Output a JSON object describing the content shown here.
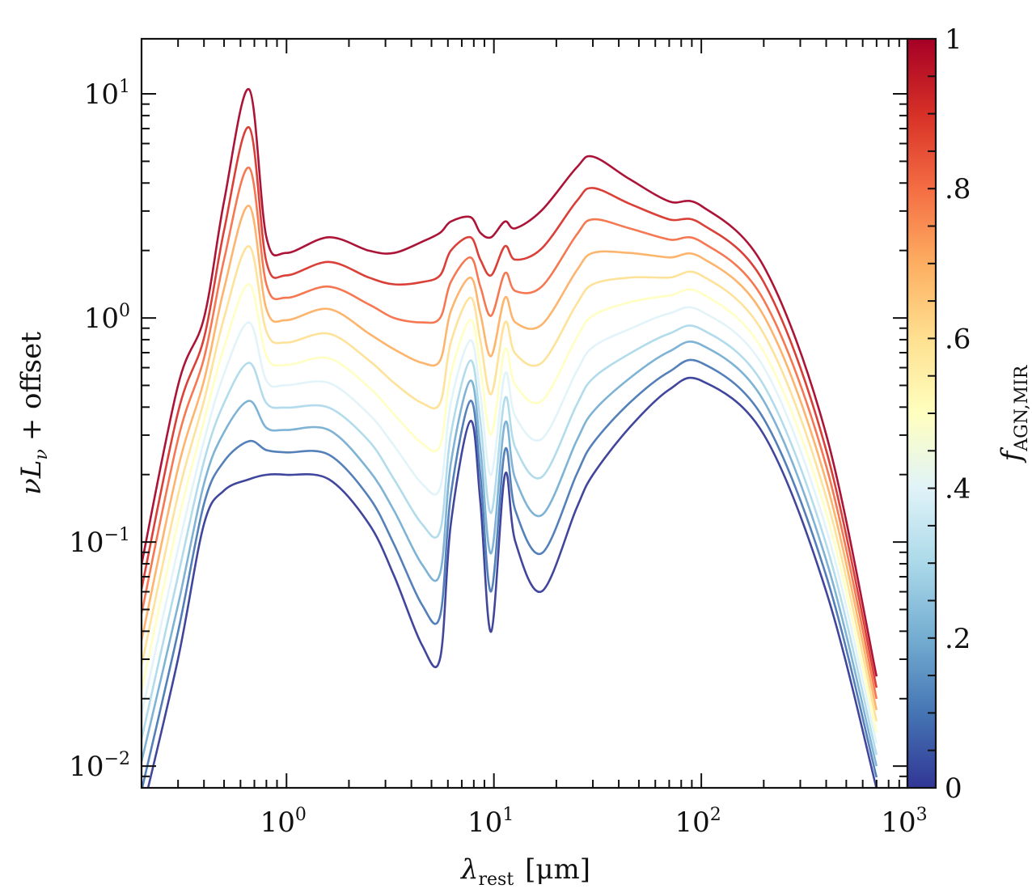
{
  "chart_data": {
    "type": "line",
    "title": "",
    "xlabel": "λ_rest [μm]",
    "xlabel_main": "λ",
    "xlabel_sub": "rest",
    "xlabel_unit": "[μm]",
    "ylabel": "νL_ν + offset",
    "ylabel_main": "νL",
    "ylabel_sub": "ν",
    "ylabel_rest": "+ offset",
    "xscale": "log",
    "yscale": "log",
    "xlim": [
      0.2,
      986
    ],
    "ylim": [
      0.008,
      17.6
    ],
    "grid": false,
    "x_ticks": [
      {
        "value": 1,
        "base": "10",
        "exp": "0"
      },
      {
        "value": 10,
        "base": "10",
        "exp": "1"
      },
      {
        "value": 100,
        "base": "10",
        "exp": "2"
      },
      {
        "value": 1000,
        "base": "10",
        "exp": "3"
      }
    ],
    "y_ticks": [
      {
        "value": 0.01,
        "base": "10",
        "exp": "−2"
      },
      {
        "value": 0.1,
        "base": "10",
        "exp": "−1"
      },
      {
        "value": 1,
        "base": "10",
        "exp": "0"
      },
      {
        "value": 10,
        "base": "10",
        "exp": "1"
      }
    ],
    "colorbar": {
      "label_main": "f",
      "label_sub": "AGN,MIR",
      "label": "f_AGN,MIR",
      "colormap": "RdYlBu_r",
      "range": [
        0,
        1
      ],
      "ticks": [
        {
          "value": 0,
          "label": "0"
        },
        {
          "value": 0.2,
          "label": ".2"
        },
        {
          "value": 0.4,
          "label": ".4"
        },
        {
          "value": 0.6,
          "label": ".6"
        },
        {
          "value": 0.8,
          "label": ".8"
        },
        {
          "value": 1,
          "label": "1"
        }
      ],
      "colors": [
        "#313695",
        "#4575b4",
        "#74add1",
        "#abd9e9",
        "#e0f3f8",
        "#ffffbf",
        "#fee090",
        "#fdae61",
        "#f46d43",
        "#d73027",
        "#a50026"
      ]
    },
    "x": [
      0.2,
      0.3,
      0.4,
      0.5,
      0.66,
      0.8,
      1.0,
      1.6,
      2.5,
      3.3,
      4.5,
      5.5,
      6.2,
      7.7,
      8.6,
      9.7,
      11.3,
      12.7,
      17,
      25,
      30,
      45,
      70,
      100,
      200,
      400,
      700
    ],
    "value_encoding": "log10",
    "series": [
      {
        "name": "f_AGN=0.0",
        "f": 0.0,
        "log10_values": [
          -2.22,
          -1.52,
          -0.92,
          -0.77,
          -0.72,
          -0.7,
          -0.7,
          -0.72,
          -0.92,
          -1.15,
          -1.46,
          -1.52,
          -0.92,
          -0.46,
          -0.82,
          -1.4,
          -0.7,
          -1.0,
          -1.22,
          -0.85,
          -0.7,
          -0.49,
          -0.32,
          -0.28,
          -0.52,
          -1.22,
          -2.1
        ]
      },
      {
        "name": "f_AGN=0.1",
        "f": 0.1,
        "log10_values": [
          -2.11,
          -1.4,
          -0.83,
          -0.64,
          -0.55,
          -0.59,
          -0.6,
          -0.61,
          -0.8,
          -1.01,
          -1.28,
          -1.33,
          -0.79,
          -0.37,
          -0.7,
          -1.22,
          -0.59,
          -0.86,
          -1.05,
          -0.7,
          -0.56,
          -0.38,
          -0.24,
          -0.2,
          -0.45,
          -1.15,
          -2.05
        ]
      },
      {
        "name": "f_AGN=0.2",
        "f": 0.2,
        "log10_values": [
          -1.98,
          -1.28,
          -0.74,
          -0.51,
          -0.37,
          -0.49,
          -0.5,
          -0.5,
          -0.68,
          -0.86,
          -1.1,
          -1.14,
          -0.65,
          -0.28,
          -0.58,
          -1.05,
          -0.47,
          -0.72,
          -0.88,
          -0.55,
          -0.42,
          -0.27,
          -0.15,
          -0.12,
          -0.37,
          -1.08,
          -2.0
        ]
      },
      {
        "name": "f_AGN=0.3",
        "f": 0.3,
        "log10_values": [
          -1.88,
          -1.15,
          -0.64,
          -0.38,
          -0.2,
          -0.38,
          -0.4,
          -0.4,
          -0.55,
          -0.72,
          -0.92,
          -0.95,
          -0.52,
          -0.19,
          -0.46,
          -0.87,
          -0.36,
          -0.58,
          -0.71,
          -0.39,
          -0.27,
          -0.16,
          -0.07,
          -0.05,
          -0.3,
          -1.01,
          -1.95
        ]
      },
      {
        "name": "f_AGN=0.4",
        "f": 0.4,
        "log10_values": [
          -1.77,
          -1.03,
          -0.55,
          -0.25,
          -0.02,
          -0.28,
          -0.3,
          -0.29,
          -0.43,
          -0.57,
          -0.74,
          -0.76,
          -0.38,
          -0.1,
          -0.34,
          -0.7,
          -0.25,
          -0.44,
          -0.54,
          -0.24,
          -0.13,
          -0.05,
          0.02,
          0.03,
          -0.22,
          -0.94,
          -1.9
        ]
      },
      {
        "name": "f_AGN=0.5",
        "f": 0.5,
        "log10_values": [
          -1.66,
          -0.91,
          -0.46,
          -0.13,
          0.15,
          -0.17,
          -0.21,
          -0.18,
          -0.31,
          -0.43,
          -0.56,
          -0.57,
          -0.25,
          -0.01,
          -0.22,
          -0.52,
          -0.14,
          -0.3,
          -0.37,
          -0.09,
          0.01,
          0.07,
          0.1,
          0.11,
          -0.15,
          -0.87,
          -1.85
        ]
      },
      {
        "name": "f_AGN=0.6",
        "f": 0.6,
        "log10_values": [
          -1.55,
          -0.79,
          -0.37,
          0.0,
          0.32,
          -0.06,
          -0.11,
          -0.07,
          -0.19,
          -0.29,
          -0.38,
          -0.38,
          -0.11,
          0.09,
          -0.1,
          -0.34,
          -0.02,
          -0.16,
          -0.2,
          0.06,
          0.15,
          0.18,
          0.18,
          0.19,
          -0.07,
          -0.8,
          -1.8
        ]
      },
      {
        "name": "f_AGN=0.7",
        "f": 0.7,
        "log10_values": [
          -1.44,
          -0.67,
          -0.28,
          0.13,
          0.5,
          0.04,
          -0.01,
          0.04,
          -0.07,
          -0.14,
          -0.2,
          -0.19,
          0.03,
          0.18,
          0.02,
          -0.17,
          0.09,
          -0.02,
          -0.03,
          0.21,
          0.29,
          0.29,
          0.27,
          0.27,
          0.01,
          -0.73,
          -1.75
        ]
      },
      {
        "name": "f_AGN=0.8",
        "f": 0.8,
        "log10_values": [
          -1.32,
          -0.54,
          -0.18,
          0.26,
          0.67,
          0.15,
          0.09,
          0.14,
          0.06,
          0.0,
          -0.02,
          0.0,
          0.16,
          0.27,
          0.14,
          0.01,
          0.2,
          0.12,
          0.14,
          0.37,
          0.44,
          0.4,
          0.35,
          0.34,
          0.08,
          -0.66,
          -1.7
        ]
      },
      {
        "name": "f_AGN=0.9",
        "f": 0.9,
        "log10_values": [
          -1.21,
          -0.42,
          -0.09,
          0.39,
          0.85,
          0.25,
          0.19,
          0.25,
          0.18,
          0.15,
          0.16,
          0.19,
          0.3,
          0.36,
          0.26,
          0.19,
          0.32,
          0.26,
          0.31,
          0.52,
          0.58,
          0.51,
          0.44,
          0.42,
          0.16,
          -0.59,
          -1.65
        ]
      },
      {
        "name": "f_AGN=1.0",
        "f": 1.0,
        "log10_values": [
          -1.1,
          -0.3,
          0.0,
          0.52,
          1.02,
          0.36,
          0.29,
          0.36,
          0.3,
          0.29,
          0.34,
          0.38,
          0.43,
          0.45,
          0.38,
          0.36,
          0.43,
          0.4,
          0.48,
          0.67,
          0.72,
          0.62,
          0.52,
          0.5,
          0.23,
          -0.52,
          -1.6
        ]
      }
    ]
  }
}
